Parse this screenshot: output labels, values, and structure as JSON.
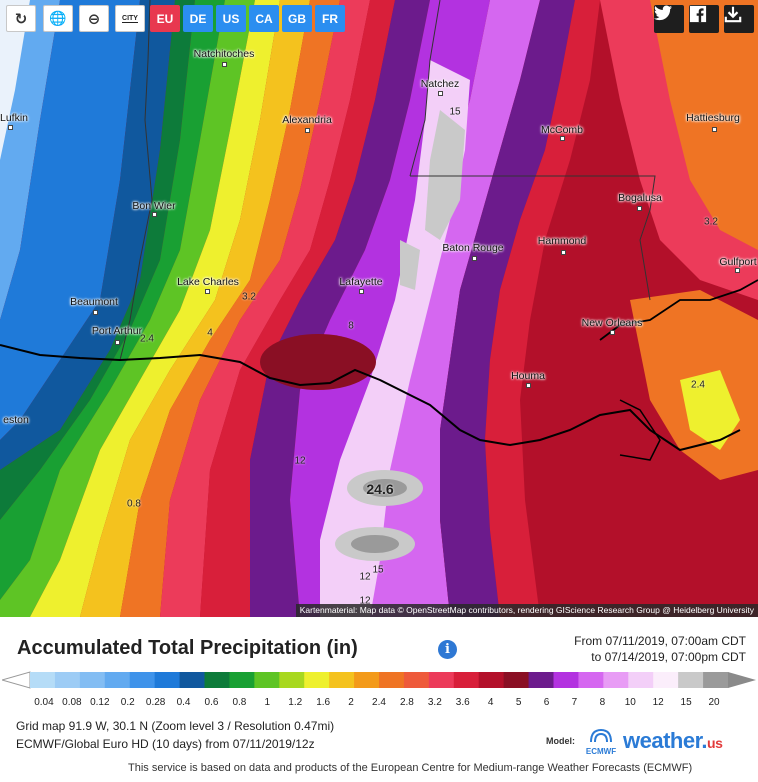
{
  "toolbar": {
    "tools": [
      {
        "name": "refresh-icon",
        "glyph": "↻"
      },
      {
        "name": "globe-icon",
        "glyph": "🌐"
      },
      {
        "name": "zoom-out-icon",
        "glyph": "⊖"
      }
    ],
    "city_toggle_label": "CITY",
    "countries": [
      {
        "label": "EU",
        "color": "#e8384f"
      },
      {
        "label": "DE",
        "color": "#2b8ef0"
      },
      {
        "label": "US",
        "color": "#2b8ef0"
      },
      {
        "label": "CA",
        "color": "#2b8ef0"
      },
      {
        "label": "GB",
        "color": "#2b8ef0"
      },
      {
        "label": "FR",
        "color": "#2b8ef0"
      }
    ],
    "share": [
      "twitter-icon",
      "facebook-icon",
      "download-icon"
    ]
  },
  "map": {
    "cities": [
      {
        "name": "Natchitoches"
      },
      {
        "name": "Lufkin"
      },
      {
        "name": "Alexandria"
      },
      {
        "name": "Natchez"
      },
      {
        "name": "McComb"
      },
      {
        "name": "Hattiesburg"
      },
      {
        "name": "Bogalusa"
      },
      {
        "name": "Bon Wier"
      },
      {
        "name": "Baton Rouge"
      },
      {
        "name": "Hammond"
      },
      {
        "name": "Gulfport"
      },
      {
        "name": "Beaumont"
      },
      {
        "name": "Lake Charles"
      },
      {
        "name": "Lafayette"
      },
      {
        "name": "Port Arthur"
      },
      {
        "name": "New Orleans"
      },
      {
        "name": "Houma"
      },
      {
        "name": "eston"
      }
    ],
    "value_labels": [
      "15",
      "3.2",
      "3.2",
      "2.4",
      "4",
      "8",
      "2.4",
      "12",
      "24.6",
      "0.8",
      "12",
      "15",
      "12"
    ],
    "attribution": "Kartenmaterial: Map data © OpenStreetMap contributors, rendering GIScience Research Group @ Heidelberg University"
  },
  "legend": {
    "title": "Accumulated Total Precipitation (in)",
    "from": "From 07/11/2019, 07:00am CDT",
    "to": "to 07/14/2019, 07:00pm CDT",
    "ticks": [
      "0.04",
      "0.08",
      "0.12",
      "0.2",
      "0.28",
      "0.4",
      "0.6",
      "0.8",
      "1",
      "1.2",
      "1.6",
      "2",
      "2.4",
      "2.8",
      "3.2",
      "3.6",
      "4",
      "5",
      "6",
      "7",
      "8",
      "10",
      "12",
      "15",
      "20"
    ],
    "colors": [
      "#b5dcf7",
      "#9dccf5",
      "#83bdf3",
      "#62aaf0",
      "#3f93ea",
      "#1f7ad9",
      "#10589e",
      "#0d7b3a",
      "#19a033",
      "#5ec425",
      "#a8d81f",
      "#eef02e",
      "#f4c21e",
      "#f39a1a",
      "#ef7424",
      "#ee5a3b",
      "#ec3b5a",
      "#d81f3a",
      "#b3102a",
      "#8a0f24",
      "#6c1b8c",
      "#b332e0",
      "#d567f0",
      "#e89cf5",
      "#f3cff8",
      "#fbeefb",
      "#c9c9c9",
      "#9a9a9a"
    ]
  },
  "footer": {
    "grid": "Grid map 91.9 W, 30.1 N (Zoom level 3 / Resolution 0.47mi)",
    "model": "ECMWF/Global Euro HD (10 days) from 07/11/2019/12z",
    "model_label": "Model:",
    "model_logo_text": "ECMWF",
    "brand": "weather.",
    "brand_tld": "us",
    "disclaimer": "This service is based on data and products of the European Centre for Medium-range Weather Forecasts (ECMWF)"
  }
}
